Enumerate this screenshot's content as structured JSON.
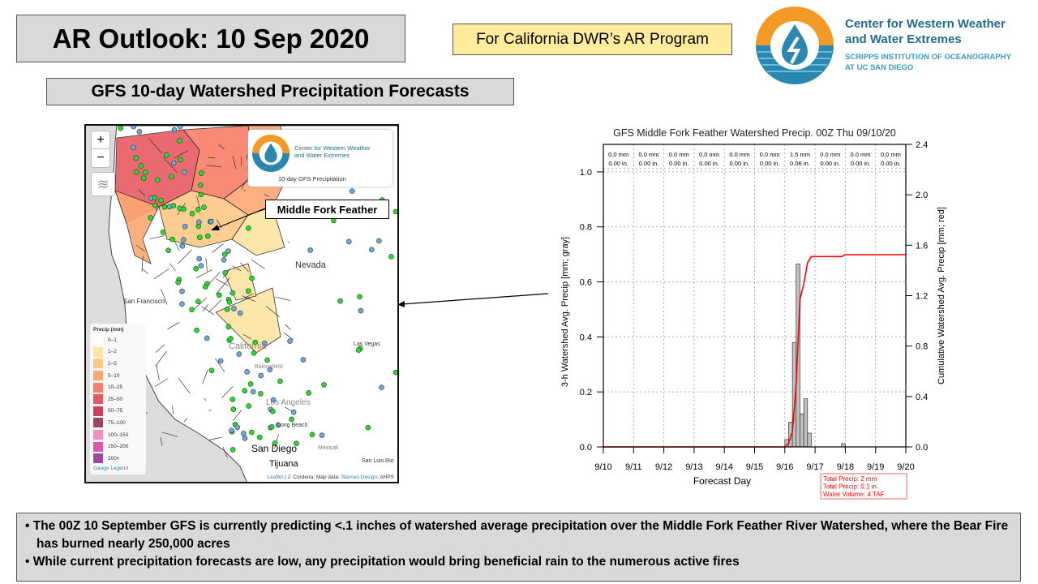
{
  "header": {
    "title": "AR Outlook: 10 Sep 2020",
    "program": "For California DWR’s AR Program",
    "subtitle": "GFS 10-day Watershed Precipitation Forecasts"
  },
  "logo": {
    "line1": "Center for Western Weather",
    "line2": "and Water Extremes",
    "line3": "SCRIPPS INSTITUTION OF OCEANOGRAPHY",
    "line4": "AT UC SAN DIEGO",
    "colors": {
      "orange": "#f39a26",
      "blue": "#2a87b0",
      "teal": "#1f6e86"
    }
  },
  "map": {
    "zoom_in": "+",
    "zoom_out": "−",
    "logo_line1": "Center for Western Weather",
    "logo_line2": "and Water Extremes",
    "logo_caption": "10-day GFS Precipitation",
    "callout": "Middle Fork Feather",
    "labels": {
      "nevada": "Nevada",
      "sf": "San Francisco",
      "california": "California",
      "las_vegas": "Las Vegas",
      "bakersfield": "Bakersfield",
      "los_angeles": "Los Angeles",
      "long_beach": "Long Beach",
      "san_diego": "San Diego",
      "tijuana": "Tijuana",
      "mexicali": "Mexicali",
      "san_luis": "San Luis Rio"
    },
    "legend": {
      "title": "Precip (mm)",
      "items": [
        {
          "label": "0–1",
          "color": "#ffffff"
        },
        {
          "label": "1–2",
          "color": "#fde4a0"
        },
        {
          "label": "2–5",
          "color": "#fdc983"
        },
        {
          "label": "5–10",
          "color": "#fca873"
        },
        {
          "label": "10–25",
          "color": "#f87e68"
        },
        {
          "label": "25–50",
          "color": "#e85a62"
        },
        {
          "label": "50–75",
          "color": "#d0415f"
        },
        {
          "label": "75–100",
          "color": "#9c4661"
        },
        {
          "label": "100–150",
          "color": "#f58fc0"
        },
        {
          "label": "150–200",
          "color": "#d958a8"
        },
        {
          "label": "200+",
          "color": "#9a4a9c"
        }
      ],
      "gauge_link": "Gauge Legend"
    },
    "attribution": {
      "leaflet": "Leaflet",
      "mid": " | J. Cordeira; Map data: ",
      "stamen": "Stamen Design",
      "end": ", AHPS"
    }
  },
  "chart_data": {
    "type": "bar",
    "title": "GFS Middle Fork Feather Watershed Precip. 00Z Thu 09/10/20",
    "xlabel": "Forecast Day",
    "ylabel": "3-h Watershed Avg. Precip [mm; gray]",
    "y2label": "Cumulative Watershed Avg. Precip [mm; red]",
    "ylim": [
      0,
      1.1
    ],
    "y2lim": [
      0,
      2.4
    ],
    "yticks": [
      "0.0",
      "0.2",
      "0.4",
      "0.6",
      "0.8",
      "1.0"
    ],
    "y2ticks": [
      "0.0",
      "0.4",
      "0.8",
      "1.2",
      "1.6",
      "2.0",
      "2.4"
    ],
    "xticks": [
      "9/10",
      "9/11",
      "9/12",
      "9/13",
      "9/14",
      "9/15",
      "9/16",
      "9/17",
      "9/18",
      "9/19",
      "9/20"
    ],
    "daily": [
      {
        "mm": "0.0 mm",
        "in": "0.00 in."
      },
      {
        "mm": "0.0 mm",
        "in": "0.00 in."
      },
      {
        "mm": "0.0 mm",
        "in": "0.00 in."
      },
      {
        "mm": "0.0 mm",
        "in": "0.00 in."
      },
      {
        "mm": "0.0 mm",
        "in": "0.00 in."
      },
      {
        "mm": "0.0 mm",
        "in": "0.00 in."
      },
      {
        "mm": "1.5 mm",
        "in": "0.06 in."
      },
      {
        "mm": "0.0 mm",
        "in": "0.00 in."
      },
      {
        "mm": "0.0 mm",
        "in": "0.00 in."
      },
      {
        "mm": "0.0 mm",
        "in": "0.00 in."
      }
    ],
    "bars_3h": [
      {
        "day": 6.0,
        "value": 0.027
      },
      {
        "day": 6.125,
        "value": 0.09
      },
      {
        "day": 6.25,
        "value": 0.38
      },
      {
        "day": 6.375,
        "value": 0.665
      },
      {
        "day": 6.5,
        "value": 0.12
      },
      {
        "day": 6.625,
        "value": 0.175
      },
      {
        "day": 6.75,
        "value": 0.05
      },
      {
        "day": 7.875,
        "value": 0.012
      }
    ],
    "cumulative": [
      [
        0,
        0
      ],
      [
        6.0,
        0
      ],
      [
        6.125,
        0.03
      ],
      [
        6.25,
        0.12
      ],
      [
        6.375,
        0.5
      ],
      [
        6.5,
        1.17
      ],
      [
        6.625,
        1.29
      ],
      [
        6.75,
        1.46
      ],
      [
        6.875,
        1.51
      ],
      [
        7.875,
        1.51
      ],
      [
        8.0,
        1.525
      ],
      [
        10,
        1.525
      ]
    ],
    "summary": {
      "line1": "Total Precip: 2 mm",
      "line2": "Total Precip: 0.1 in.",
      "line3": "Water Volume: 4 TAF"
    },
    "colors": {
      "bar": "#c0c0c0",
      "line": "#ff0000"
    }
  },
  "bullets": [
    "• The 00Z 10 September GFS is currently predicting <.1 inches of watershed average precipitation over the Middle Fork Feather River Watershed, where the Bear Fire has burned nearly 250,000 acres",
    "• While current precipitation forecasts are low, any precipitation would bring beneficial rain to the numerous active fires"
  ]
}
